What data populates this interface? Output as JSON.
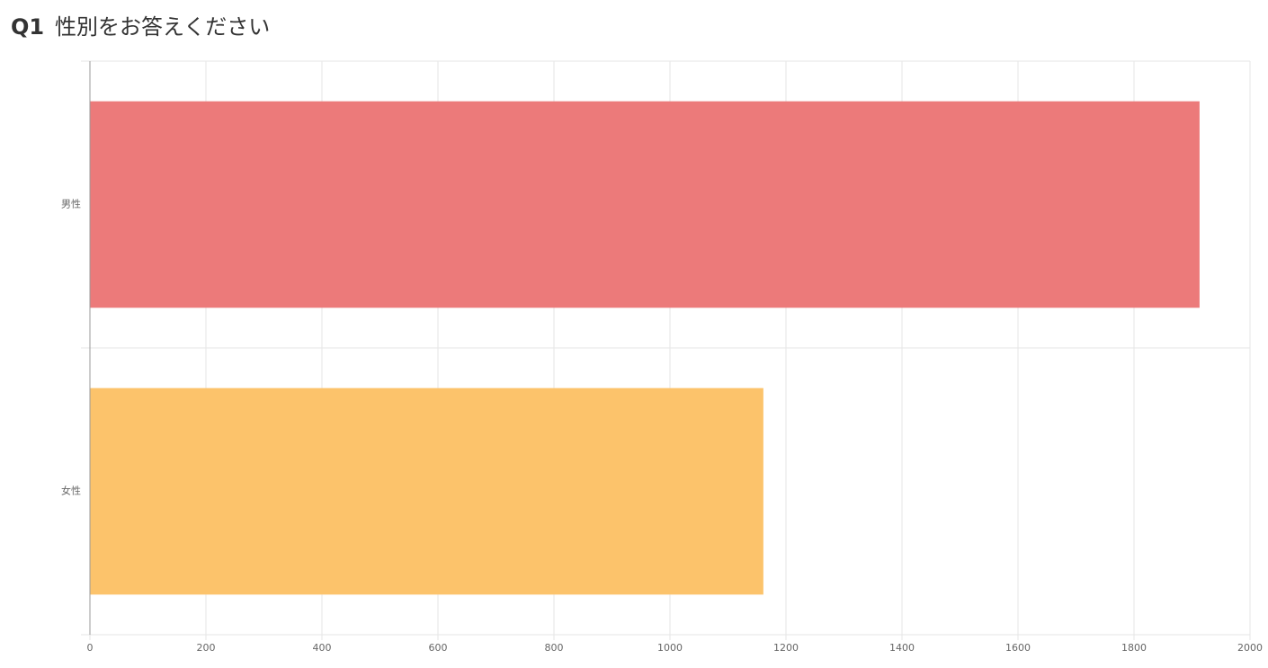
{
  "chart_data": {
    "type": "hbar",
    "question_number": "Q1",
    "title": "性別をお答えください",
    "categories": [
      "男性",
      "女性"
    ],
    "values": [
      1913,
      1161
    ],
    "colors": [
      "#ec7a7a",
      "#fcc36b"
    ],
    "xlim": [
      0,
      2000
    ],
    "xticks": [
      0,
      200,
      400,
      600,
      800,
      1000,
      1200,
      1400,
      1600,
      1800,
      2000
    ],
    "grid": true
  }
}
